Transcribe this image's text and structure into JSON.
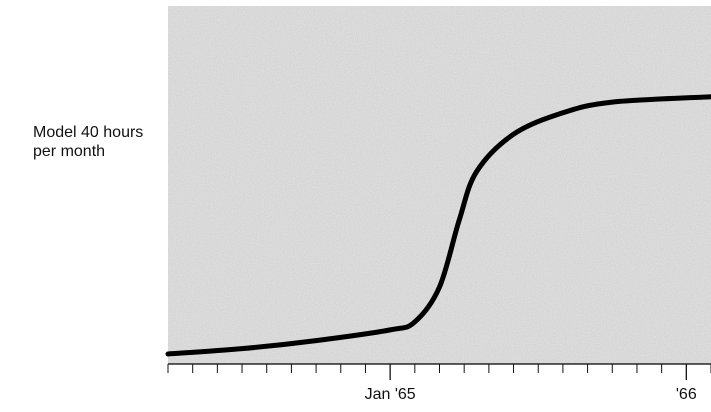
{
  "chart_data": {
    "type": "line",
    "title": "",
    "ylabel": "Model 40 hours per month",
    "xlabel": "",
    "x_tick_labels": [
      {
        "month": 0,
        "label": "Jan '65"
      },
      {
        "month": 12,
        "label": "'66"
      }
    ],
    "x_axis": {
      "start_month": -9,
      "end_month": 13,
      "minor_tick_interval_months": 1,
      "zero_month_label": "Jan '65"
    },
    "y_axis": {
      "ticks_labeled": false,
      "ylim": [
        0,
        1
      ],
      "note": "Relative level (no numeric ticks shown)"
    },
    "series": [
      {
        "values": [
          {
            "x": -9,
            "y": 0.0
          },
          {
            "x": -6,
            "y": 0.02
          },
          {
            "x": -3,
            "y": 0.05
          },
          {
            "x": 0,
            "y": 0.09
          },
          {
            "x": 1,
            "y": 0.12
          },
          {
            "x": 2,
            "y": 0.25
          },
          {
            "x": 2.8,
            "y": 0.5
          },
          {
            "x": 3.5,
            "y": 0.68
          },
          {
            "x": 5,
            "y": 0.82
          },
          {
            "x": 7,
            "y": 0.9
          },
          {
            "x": 9,
            "y": 0.94
          },
          {
            "x": 13,
            "y": 0.96
          }
        ]
      }
    ],
    "grid": false,
    "legend": "none",
    "colors": {
      "plot_background": "#cfcfcf",
      "line": "#000000",
      "text": "#111111"
    }
  }
}
